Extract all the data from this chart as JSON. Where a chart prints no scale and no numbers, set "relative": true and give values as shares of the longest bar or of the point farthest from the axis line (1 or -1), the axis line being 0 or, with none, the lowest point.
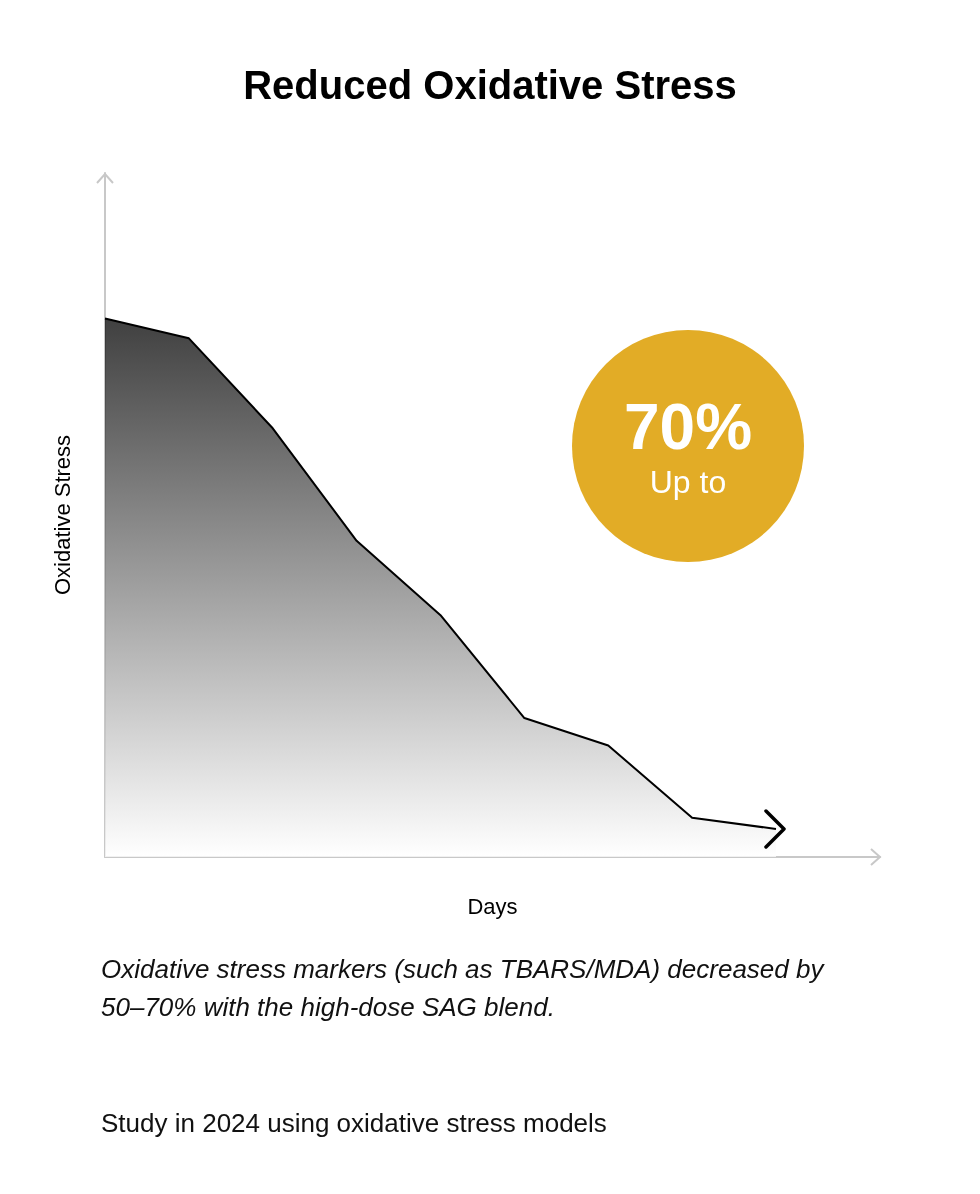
{
  "chart_data": {
    "type": "area",
    "title": "Reduced Oxidative Stress",
    "xlabel": "Days",
    "ylabel": "Oxidative Stress",
    "relative": true,
    "categories": [
      null,
      null,
      null,
      null,
      null,
      null,
      null,
      null,
      null
    ],
    "series": [
      {
        "color": "#000000",
        "values": [
          1,
          0.963,
          0.796,
          0.587,
          0.449,
          0.258,
          0.207,
          0.073,
          0.052
        ]
      }
    ],
    "grid": false,
    "marker": "none",
    "annotations": [
      "70%",
      "Up to",
      "Oxidative stress markers (such as TBARS/MDA) decreased by 50–70% with the high-dose SAG blend.",
      "Study in 2024 using oxidative stress models"
    ]
  }
}
